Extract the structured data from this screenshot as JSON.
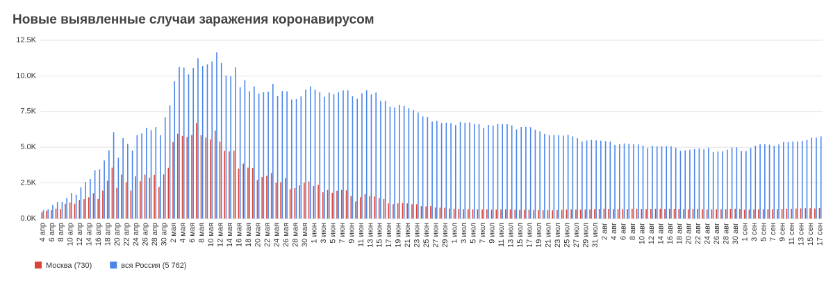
{
  "chart_data": {
    "type": "bar",
    "title": "Новые выявленные случаи заражения коронавирусом",
    "categories": [
      "4 апр",
      null,
      "6 апр",
      null,
      "8 апр",
      null,
      "10 апр",
      null,
      "12 апр",
      null,
      "14 апр",
      null,
      "16 апр",
      null,
      "18 апр",
      null,
      "20 апр",
      null,
      "22 апр",
      null,
      "24 апр",
      null,
      "26 апр",
      null,
      "28 апр",
      null,
      "30 апр",
      null,
      "2 мая",
      null,
      "4 мая",
      null,
      "6 мая",
      null,
      "8 мая",
      null,
      "10 мая",
      null,
      "12 мая",
      null,
      "14 мая",
      null,
      "16 мая",
      null,
      "18 мая",
      null,
      "20 мая",
      null,
      "22 мая",
      null,
      "24 мая",
      null,
      "26 мая",
      null,
      "28 мая",
      null,
      "30 мая",
      null,
      "1 июн",
      null,
      "3 июн",
      null,
      "5 июн",
      null,
      "7 июн",
      null,
      "9 июн",
      null,
      "11 июн",
      null,
      "13 июн",
      null,
      "15 июн",
      null,
      "17 июн",
      null,
      "19 июн",
      null,
      "21 июн",
      null,
      "23 июн",
      null,
      "25 июн",
      null,
      "27 июн",
      null,
      "29 июн",
      null,
      "1 июл",
      null,
      "3 июл",
      null,
      "5 июл",
      null,
      "7 июл",
      null,
      "9 июл",
      null,
      "11 июл",
      null,
      "13 июл",
      null,
      "15 июл",
      null,
      "17 июл",
      null,
      "19 июл",
      null,
      "21 июл",
      null,
      "23 июл",
      null,
      "25 июл",
      null,
      "27 июл",
      null,
      "29 июл",
      null,
      "31 июл",
      null,
      "2 авг",
      null,
      "4 авг",
      null,
      "6 авг",
      null,
      "8 авг",
      null,
      "10 авг",
      null,
      "12 авг",
      null,
      "14 авг",
      null,
      "16 авг",
      null,
      "18 авг",
      null,
      "20 авг",
      null,
      "22 авг",
      null,
      "24 авг",
      null,
      "26 авг",
      null,
      "28 авг",
      null,
      "30 авг",
      null,
      "1 сен",
      null,
      "3 сен",
      null,
      "5 сен",
      null,
      "7 сен",
      null,
      "9 сен",
      null,
      "11 сен",
      null,
      "13 сен",
      null,
      "15 сен",
      null,
      "17 сен"
    ],
    "series": [
      {
        "name": "Москва (730)",
        "color": "#db4437",
        "values": [
          434,
          536,
          591,
          697,
          660,
          1030,
          1124,
          1030,
          1306,
          1355,
          1489,
          1774,
          1370,
          1959,
          2649,
          3570,
          2151,
          3083,
          2548,
          1958,
          2957,
          2612,
          3083,
          2871,
          3075,
          2220,
          3093,
          3561,
          5358,
          5948,
          5795,
          5714,
          5858,
          6703,
          5846,
          5667,
          5551,
          6169,
          5392,
          4748,
          4703,
          4748,
          3505,
          3855,
          3570,
          3545,
          2699,
          2913,
          2988,
          3190,
          2516,
          2560,
          2830,
          2054,
          2140,
          2332,
          2522,
          2595,
          2286,
          2361,
          1842,
          1998,
          1804,
          1952,
          2001,
          1981,
          1572,
          1195,
          1492,
          1726,
          1572,
          1541,
          1436,
          1367,
          1058,
          1010,
          1068,
          1091,
          1063,
          1000,
          1000,
          870,
          850,
          870,
          770,
          760,
          750,
          700,
          690,
          680,
          660,
          660,
          650,
          650,
          640,
          650,
          630,
          630,
          640,
          650,
          640,
          620,
          600,
          610,
          620,
          600,
          590,
          580,
          590,
          580,
          600,
          610,
          630,
          640,
          630,
          620,
          640,
          650,
          660,
          680,
          690,
          680,
          660,
          670,
          670,
          680,
          690,
          690,
          680,
          660,
          680,
          690,
          690,
          680,
          690,
          680,
          670,
          660,
          650,
          680,
          690,
          660,
          640,
          650,
          650,
          660,
          660,
          680,
          690,
          680,
          620,
          630,
          640,
          650,
          650,
          660,
          660,
          670,
          680,
          690,
          690,
          700,
          710,
          720,
          720,
          700,
          730
        ]
      },
      {
        "name": "вся Россия (5 762)",
        "color": "#4a86e8",
        "values": [
          582,
          658,
          954,
          1154,
          1175,
          1459,
          1786,
          1667,
          2186,
          2558,
          2774,
          3388,
          3448,
          4070,
          4785,
          6060,
          4268,
          5642,
          5236,
          4774,
          5849,
          5966,
          6361,
          6198,
          6411,
          5841,
          7099,
          7933,
          9623,
          10633,
          10581,
          10102,
          10559,
          11231,
          10699,
          10817,
          11012,
          11656,
          10899,
          10028,
          9974,
          10598,
          9200,
          9709,
          8926,
          9263,
          8764,
          8849,
          8894,
          9434,
          8599,
          8946,
          8915,
          8338,
          8371,
          8572,
          9035,
          9268,
          9035,
          8863,
          8536,
          8831,
          8726,
          8855,
          8984,
          8985,
          8595,
          8404,
          8779,
          8987,
          8706,
          8835,
          8246,
          8248,
          7843,
          7790,
          7972,
          7889,
          7728,
          7600,
          7425,
          7176,
          7113,
          6800,
          6852,
          6693,
          6719,
          6693,
          6556,
          6760,
          6718,
          6736,
          6632,
          6611,
          6368,
          6562,
          6509,
          6635,
          6615,
          6611,
          6537,
          6248,
          6422,
          6428,
          6406,
          6234,
          6109,
          5940,
          5842,
          5862,
          5848,
          5811,
          5871,
          5765,
          5635,
          5395,
          5475,
          5509,
          5482,
          5462,
          5427,
          5394,
          5159,
          5204,
          5267,
          5241,
          5212,
          5189,
          5118,
          4945,
          5102,
          5057,
          5061,
          5065,
          5061,
          4969,
          4748,
          4790,
          4828,
          4870,
          4921,
          4852,
          4969,
          4676,
          4696,
          4711,
          4829,
          4980,
          4993,
          4729,
          4729,
          4952,
          5110,
          5205,
          5195,
          5185,
          5099,
          5185,
          5363,
          5363,
          5405,
          5406,
          5449,
          5509,
          5670,
          5670,
          5762
        ]
      }
    ],
    "ylim": [
      0,
      12500
    ],
    "yticks": [
      {
        "value": 0,
        "label": "0.0K"
      },
      {
        "value": 2500,
        "label": "2.5K"
      },
      {
        "value": 5000,
        "label": "5.0K"
      },
      {
        "value": 7500,
        "label": "7.5K"
      },
      {
        "value": 10000,
        "label": "10.0K"
      },
      {
        "value": 12500,
        "label": "12.5K"
      }
    ],
    "grid": true
  }
}
